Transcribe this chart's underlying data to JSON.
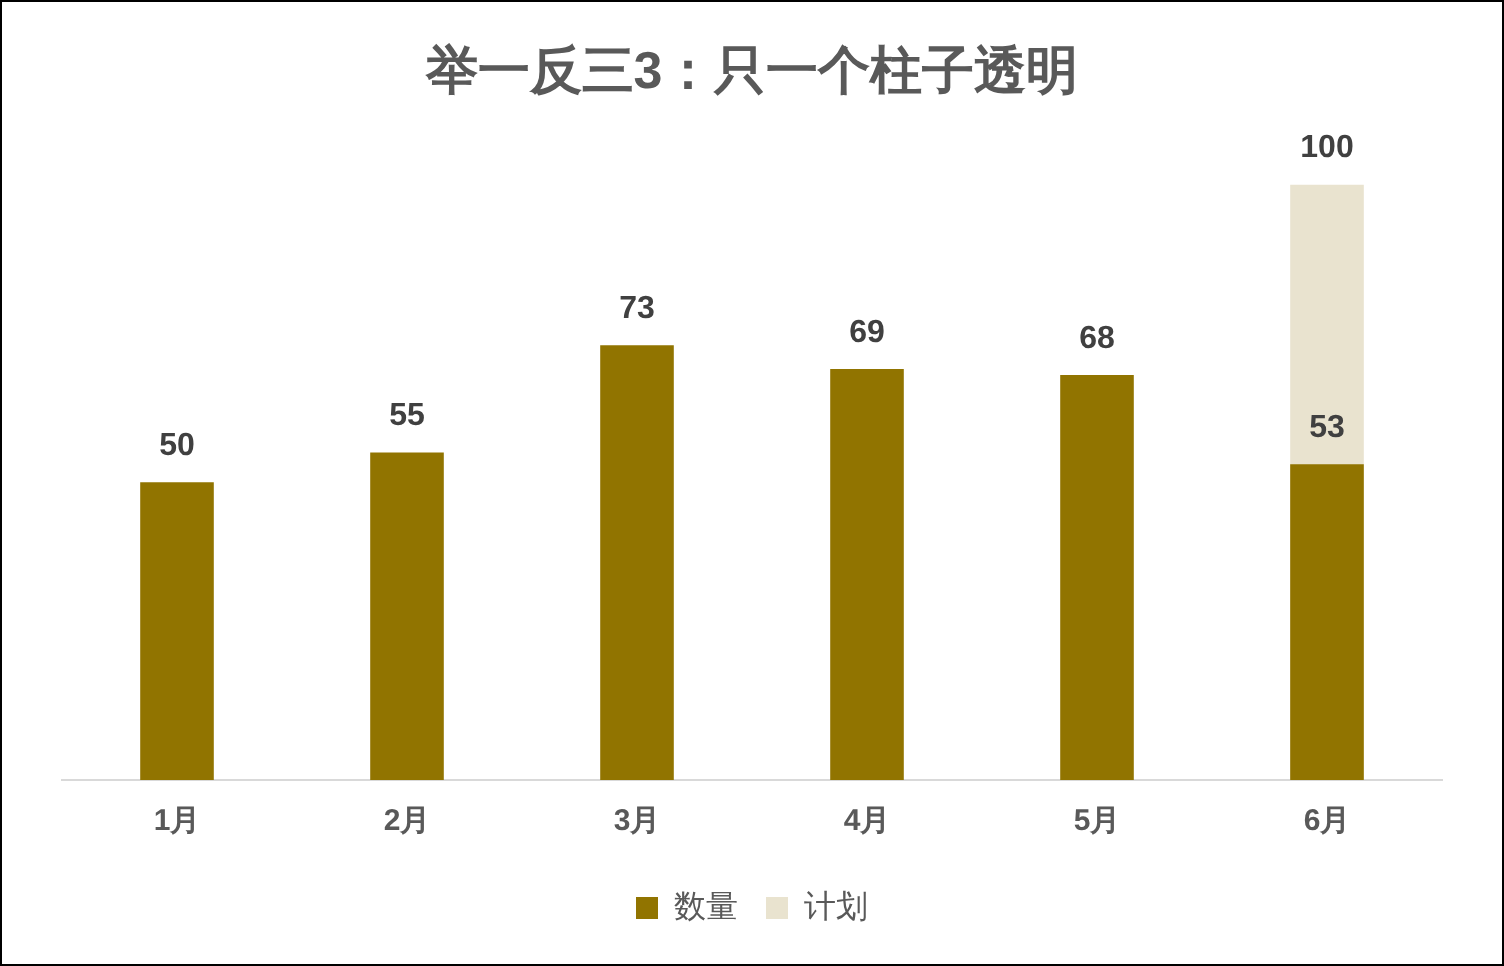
{
  "chart_data": {
    "type": "bar",
    "title": "举一反三3：只一个柱子透明",
    "categories": [
      "1月",
      "2月",
      "3月",
      "4月",
      "5月",
      "6月"
    ],
    "series": [
      {
        "name": "数量",
        "color": "#917400",
        "values": [
          50,
          55,
          73,
          69,
          68,
          53
        ]
      },
      {
        "name": "计划",
        "color": "#e9e3cf",
        "values": [
          null,
          null,
          null,
          null,
          null,
          100
        ]
      }
    ],
    "data_labels": true,
    "grid": false,
    "legend": "bottom",
    "tick_labels": "x"
  }
}
